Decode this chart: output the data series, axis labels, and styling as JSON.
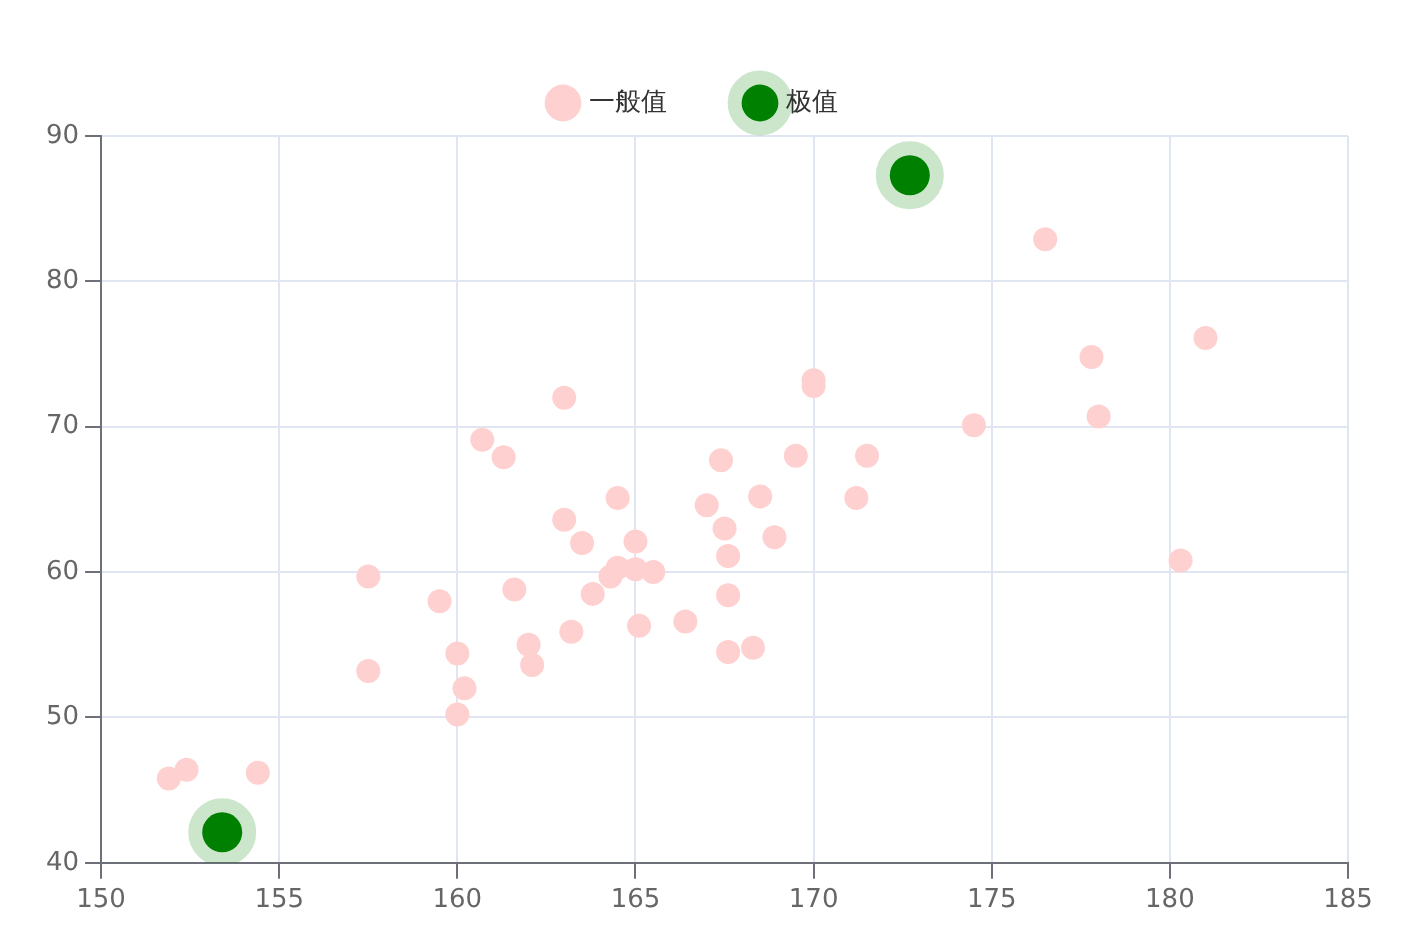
{
  "chart_data": {
    "type": "scatter",
    "legend": "top",
    "grid": true,
    "marker": "circle",
    "xlim": [
      150,
      185
    ],
    "xticks": [
      150,
      155,
      160,
      165,
      170,
      175,
      180,
      185
    ],
    "ylim": [
      40,
      90
    ],
    "yticks": [
      40,
      50,
      60,
      70,
      80,
      90
    ],
    "series": [
      {
        "name": "一般值",
        "color": "#ffd0d0",
        "x": [
          151.9,
          152.4,
          154.4,
          157.5,
          157.5,
          159.5,
          160.0,
          160.0,
          160.2,
          160.7,
          161.3,
          161.6,
          162.0,
          162.1,
          163.0,
          163.0,
          163.2,
          163.5,
          163.8,
          164.3,
          164.5,
          164.5,
          165.0,
          165.0,
          165.1,
          165.5,
          166.4,
          167.0,
          167.4,
          167.5,
          167.6,
          167.6,
          167.6,
          168.3,
          168.5,
          168.9,
          169.5,
          170.0,
          170.0,
          171.2,
          171.5,
          174.5,
          176.5,
          177.8,
          178.0,
          180.3,
          181.0
        ],
        "values": [
          45.8,
          46.4,
          46.2,
          59.7,
          53.2,
          58.0,
          54.4,
          50.2,
          52.0,
          69.1,
          67.9,
          58.8,
          55.0,
          53.6,
          72.0,
          63.6,
          55.9,
          62.0,
          58.5,
          59.7,
          65.1,
          60.3,
          62.1,
          60.2,
          56.3,
          60.0,
          56.6,
          64.6,
          67.7,
          63.0,
          61.1,
          58.4,
          54.5,
          54.8,
          65.2,
          62.4,
          68.0,
          73.2,
          72.8,
          65.1,
          68.0,
          70.1,
          82.9,
          74.8,
          70.7,
          60.8,
          76.1
        ]
      },
      {
        "name": "极值",
        "color": "#008000",
        "x": [
          153.4,
          172.7
        ],
        "values": [
          42.1,
          87.3
        ]
      }
    ]
  }
}
